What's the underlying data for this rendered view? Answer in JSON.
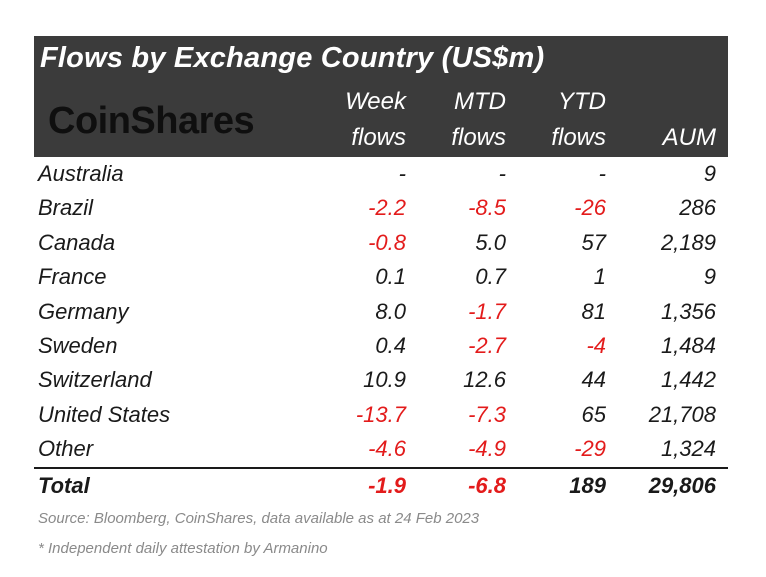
{
  "title": "Flows by Exchange Country (US$m)",
  "logo": "CoinShares",
  "columns": [
    {
      "line1": "Week",
      "line2": "flows"
    },
    {
      "line1": "MTD",
      "line2": "flows"
    },
    {
      "line1": "YTD",
      "line2": "flows"
    },
    {
      "line1": "",
      "line2": "AUM"
    }
  ],
  "chart_data": {
    "type": "table",
    "title": "Flows by Exchange Country (US$m)",
    "headers": [
      "",
      "Week flows",
      "MTD flows",
      "YTD flows",
      "AUM"
    ],
    "rows": [
      [
        "Australia",
        "-",
        "-",
        "-",
        "9"
      ],
      [
        "Brazil",
        "-2.2",
        "-8.5",
        "-26",
        "286"
      ],
      [
        "Canada",
        "-0.8",
        "5.0",
        "57",
        "2,189"
      ],
      [
        "France",
        "0.1",
        "0.7",
        "1",
        "9"
      ],
      [
        "Germany",
        "8.0",
        "-1.7",
        "81",
        "1,356"
      ],
      [
        "Sweden",
        "0.4",
        "-2.7",
        "-4",
        "1,484"
      ],
      [
        "Switzerland",
        "10.9",
        "12.6",
        "44",
        "1,442"
      ],
      [
        "United States",
        "-13.7",
        "-7.3",
        "65",
        "21,708"
      ],
      [
        "Other",
        "-4.6",
        "-4.9",
        "-29",
        "1,324"
      ]
    ],
    "total": [
      "Total",
      "-1.9",
      "-6.8",
      "189",
      "29,806"
    ],
    "negative_color": "#e31b1b",
    "header_bg": "#3b3b3b"
  },
  "notes": {
    "source": "Source: Bloomberg, CoinShares, data available as at 24 Feb 2023",
    "footnote": "* Independent daily attestation by Armanino"
  }
}
